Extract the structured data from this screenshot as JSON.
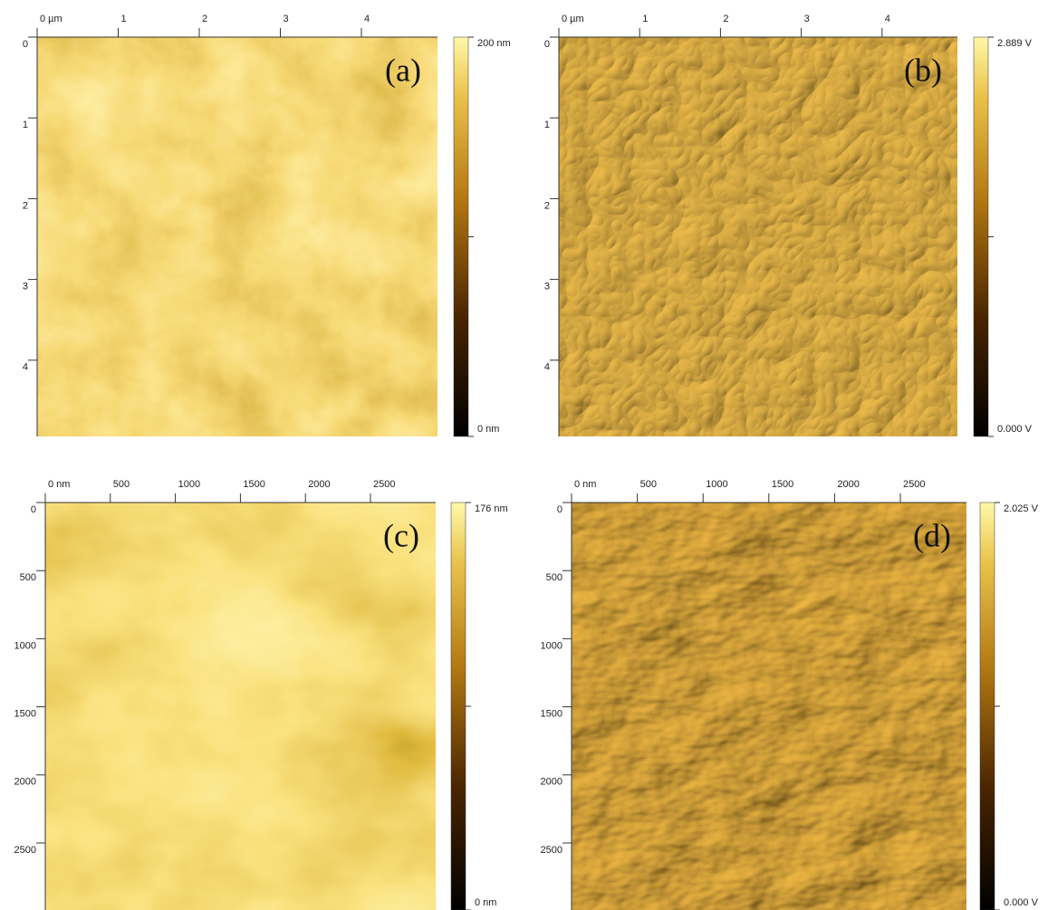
{
  "panels": [
    {
      "label": "(a)",
      "x_ticks": [
        "0 µm",
        "1",
        "2",
        "3",
        "4"
      ],
      "y_ticks": [
        "0",
        "1",
        "2",
        "3",
        "4"
      ],
      "colorbar": {
        "max": "200 nm",
        "min": "0 nm"
      }
    },
    {
      "label": "(b)",
      "x_ticks": [
        "0 µm",
        "1",
        "2",
        "3",
        "4"
      ],
      "y_ticks": [
        "0",
        "1",
        "2",
        "3",
        "4"
      ],
      "colorbar": {
        "max": "2.889 V",
        "min": "0.000 V"
      }
    },
    {
      "label": "(c)",
      "x_ticks": [
        "0 nm",
        "500",
        "1000",
        "1500",
        "2000",
        "2500"
      ],
      "y_ticks": [
        "0",
        "500",
        "1000",
        "1500",
        "2000",
        "2500"
      ],
      "colorbar": {
        "max": "176 nm",
        "min": "0 nm"
      }
    },
    {
      "label": "(d)",
      "x_ticks": [
        "0 nm",
        "500",
        "1000",
        "1500",
        "2000",
        "2500"
      ],
      "y_ticks": [
        "0",
        "500",
        "1000",
        "1500",
        "2000",
        "2500"
      ],
      "colorbar": {
        "max": "2.025 V",
        "min": "0.000 V"
      }
    }
  ]
}
